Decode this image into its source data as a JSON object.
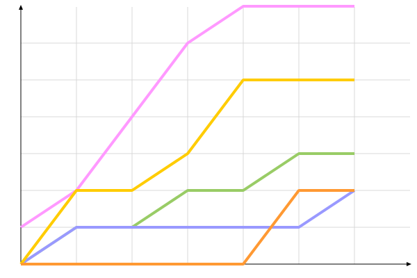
{
  "chart_data": {
    "type": "line",
    "title": "",
    "xlabel": "",
    "ylabel": "",
    "x": [
      0,
      1,
      2,
      3,
      4,
      5,
      6
    ],
    "xlim": [
      0,
      7
    ],
    "ylim": [
      0,
      7
    ],
    "grid": true,
    "legend": "none",
    "series": [
      {
        "color": "#ff99ff",
        "values": [
          1,
          2,
          4,
          6,
          7,
          7,
          7
        ]
      },
      {
        "color": "#99cc66",
        "values": [
          0,
          1,
          1,
          2,
          2,
          3,
          3
        ]
      },
      {
        "color": "#9999ff",
        "values": [
          0,
          1,
          1,
          1,
          1,
          1,
          2
        ]
      },
      {
        "color": "#ffcc00",
        "values": [
          0,
          2,
          2,
          3,
          5,
          5,
          5
        ]
      },
      {
        "color": "#ff9933",
        "values": [
          0,
          0,
          0,
          0,
          0,
          2,
          2
        ]
      }
    ]
  }
}
